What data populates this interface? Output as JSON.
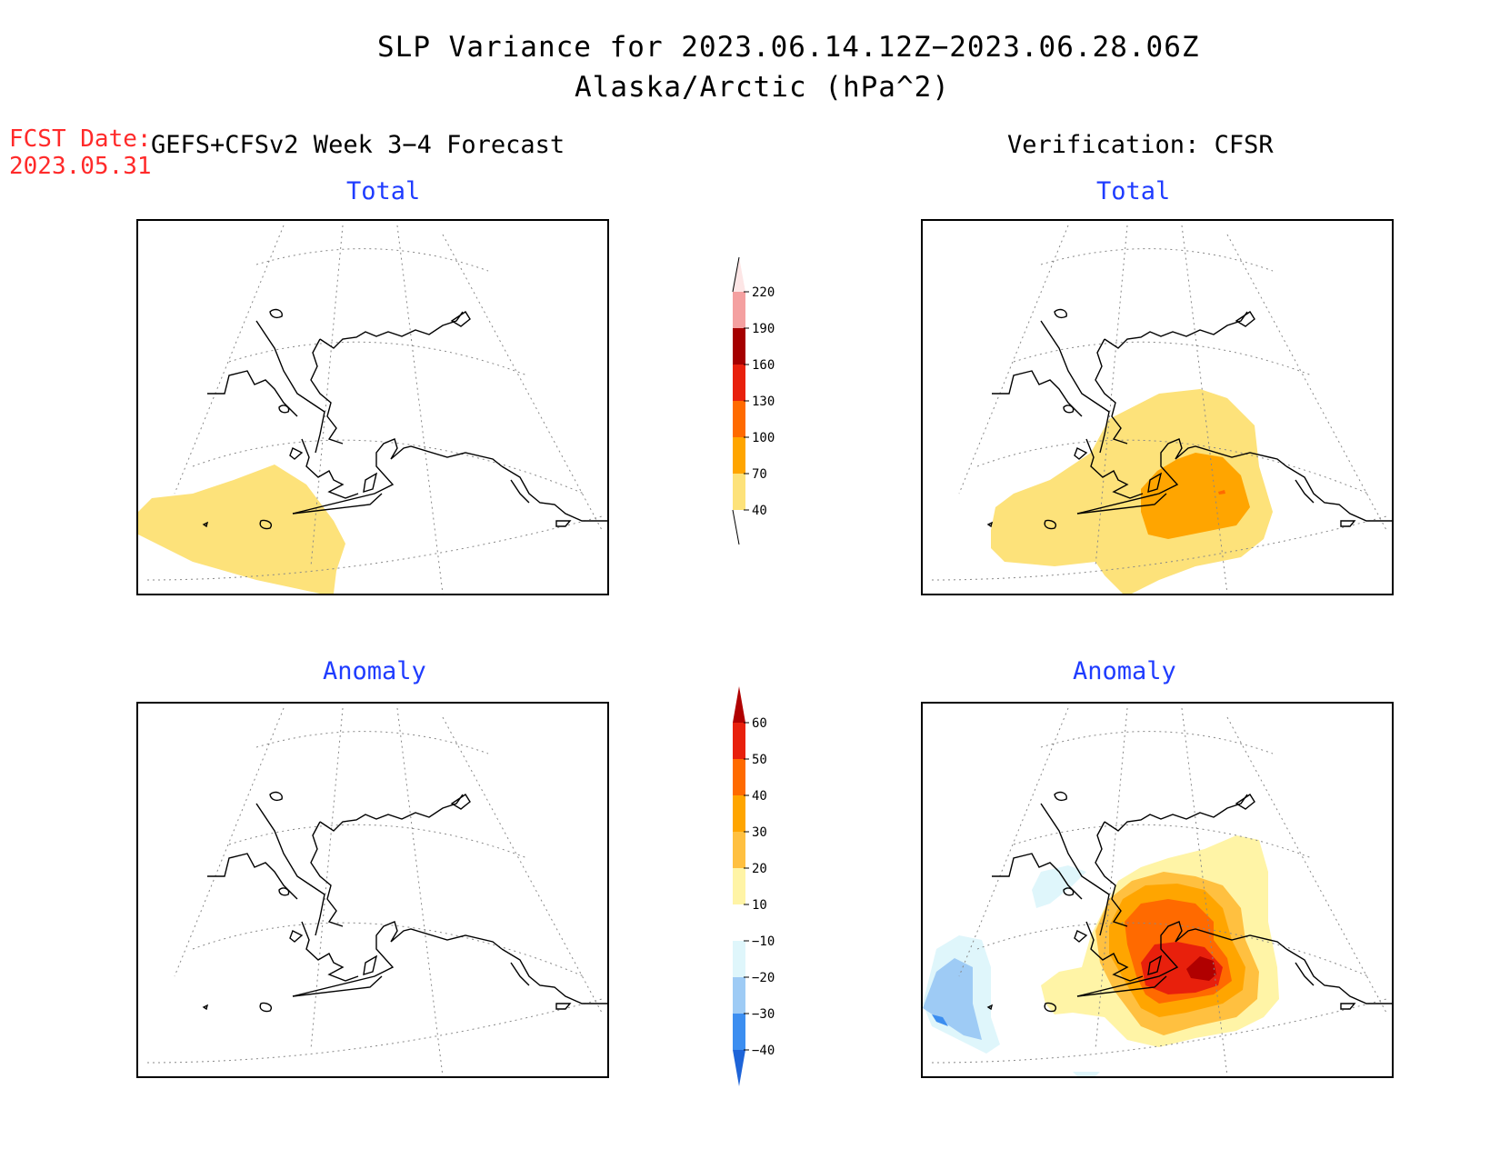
{
  "title": "SLP Variance for 2023.06.14.12Z−2023.06.28.06Z",
  "subtitle": "Alaska/Arctic (hPa^2)",
  "fcst_label": "FCST Date:",
  "fcst_date": "2023.05.31",
  "forecast_header": "GEFS+CFSv2 Week 3−4 Forecast",
  "verification_header": "Verification: CFSR",
  "panels": {
    "fc_total": "Total",
    "fc_anomaly": "Anomaly",
    "ver_total": "Total",
    "ver_anomaly": "Anomaly"
  },
  "colorbar_total": {
    "labels": [
      "40",
      "70",
      "100",
      "130",
      "160",
      "190",
      "220"
    ],
    "colors": [
      "#fde27a",
      "#ffa500",
      "#ff6a00",
      "#e8200c",
      "#a50000",
      "#f4a0a0",
      "#fde6e6"
    ]
  },
  "colorbar_anomaly": {
    "labels": [
      "−40",
      "−30",
      "−20",
      "−10",
      "10",
      "20",
      "30",
      "40",
      "50",
      "60"
    ],
    "colors": [
      "#1e64d8",
      "#3c8ef0",
      "#9ecbf5",
      "#dff6fb",
      "#ffffff",
      "#fff4a6",
      "#ffc040",
      "#ffa500",
      "#ff6a00",
      "#e8200c",
      "#b00000"
    ]
  },
  "colors": {
    "title_red": "#ff2a2a",
    "subtitle_blue": "#1f3cff"
  }
}
